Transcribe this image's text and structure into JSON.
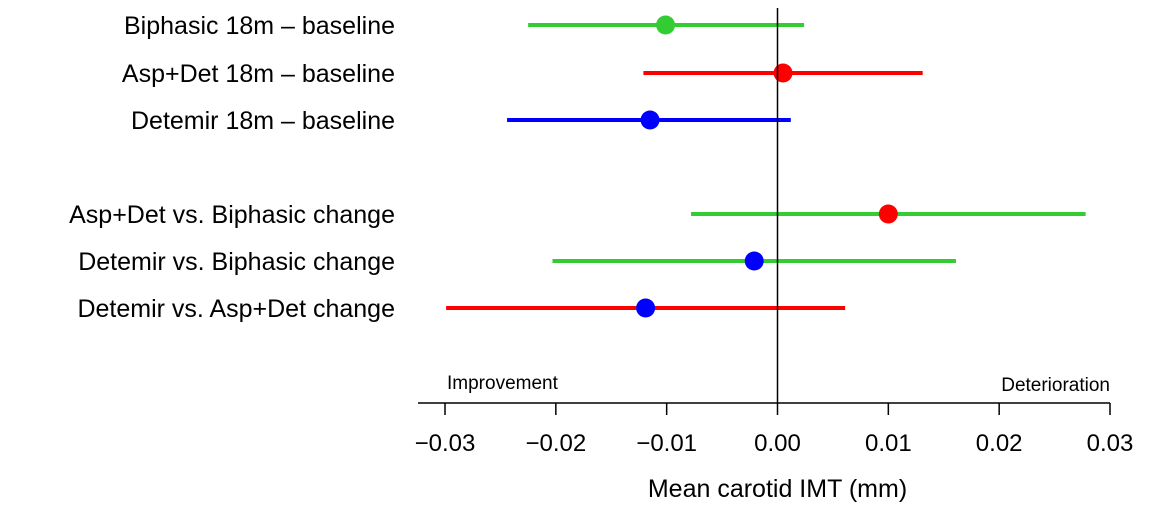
{
  "chart_data": {
    "type": "forest",
    "xlabel": "Mean carotid IMT (mm)",
    "xlim": [
      -0.03,
      0.03
    ],
    "ticks": [
      -0.03,
      -0.02,
      -0.01,
      0.0,
      0.01,
      0.02,
      0.03
    ],
    "tick_labels": [
      "−0.03",
      "−0.02",
      "−0.01",
      "0.00",
      "0.01",
      "0.02",
      "0.03"
    ],
    "annotations": {
      "left": "Improvement",
      "right": "Deterioration"
    },
    "reference_line": 0.0,
    "rows": [
      {
        "label": "Biphasic 18m – baseline",
        "estimate": -0.0101,
        "lower": -0.0225,
        "upper": 0.0024,
        "line_color": "#33cc33",
        "point_color": "#33cc33"
      },
      {
        "label": "Asp+Det 18m – baseline",
        "estimate": 0.0005,
        "lower": -0.0121,
        "upper": 0.0131,
        "line_color": "#ff0000",
        "point_color": "#ff0000"
      },
      {
        "label": "Detemir 18m – baseline",
        "estimate": -0.0115,
        "lower": -0.0244,
        "upper": 0.0012,
        "line_color": "#0000ff",
        "point_color": "#0000ff"
      },
      {
        "label": "Asp+Det vs. Biphasic change",
        "estimate": 0.01,
        "lower": -0.0078,
        "upper": 0.0278,
        "line_color": "#33cc33",
        "point_color": "#ff0000"
      },
      {
        "label": "Detemir vs. Biphasic change",
        "estimate": -0.0021,
        "lower": -0.0203,
        "upper": 0.0161,
        "line_color": "#33cc33",
        "point_color": "#0000ff"
      },
      {
        "label": "Detemir vs. Asp+Det change",
        "estimate": -0.0119,
        "lower": -0.0299,
        "upper": 0.0061,
        "line_color": "#ff0000",
        "point_color": "#0000ff"
      }
    ]
  }
}
